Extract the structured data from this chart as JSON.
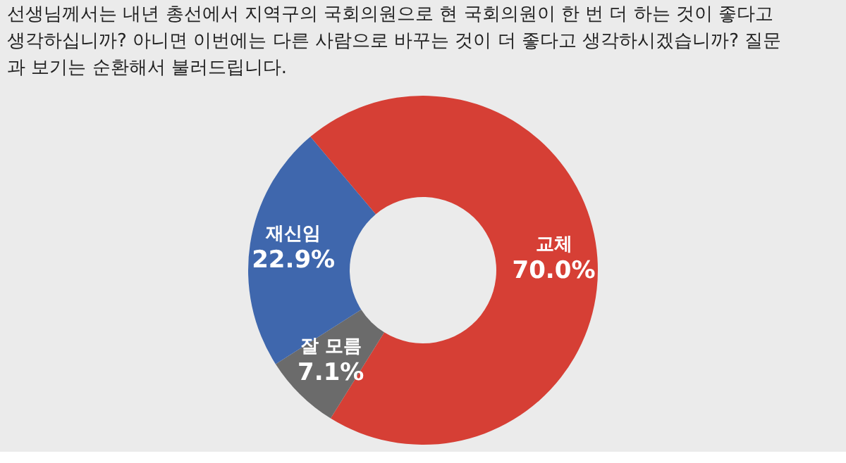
{
  "chart_data": {
    "type": "donut",
    "title": [
      "선생님께서는 내년 총선에서 지역구의 국회의원으로 현 국회의원이 한 번 더 하는 것이 좋다고",
      "생각하십니까? 아니면 이번에는 다른 사람으로 바꾸는 것이 더 좋다고 생각하시겠습니까? 질문",
      "과 보기는 순환해서 불러드립니다."
    ],
    "categories": [
      "교체",
      "잘 모름",
      "재신임"
    ],
    "values": [
      70.0,
      7.1,
      22.9
    ],
    "colors": [
      "#d63f35",
      "#6b6b6b",
      "#3f67ad"
    ],
    "value_labels": [
      "70.0%",
      "7.1%",
      "22.9%"
    ],
    "legend": false
  }
}
